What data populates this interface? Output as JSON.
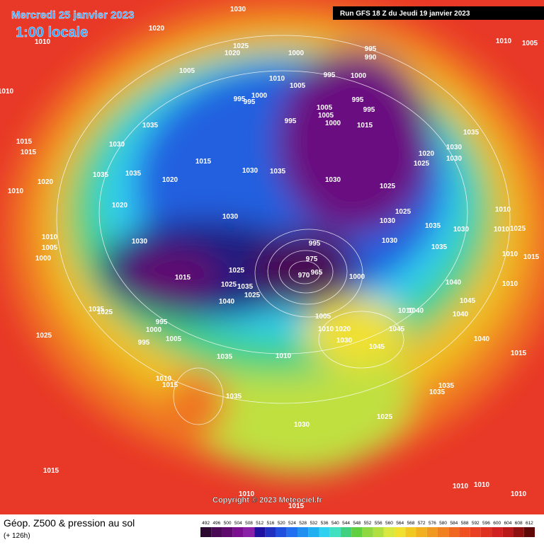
{
  "header": {
    "title": "Mercredi 25 janvier 2023",
    "time": "1:00 locale",
    "run": "Run GFS 18 Z du Jeudi 19 janvier 2023"
  },
  "copyright": "Copyright © 2023 Meteociel.fr",
  "footer": {
    "title": "Géop. Z500 & pression au sol",
    "lead": "(+ 126h)"
  },
  "pressure_labels": [
    "1030",
    "1020",
    "1010",
    "1025",
    "1020",
    "995",
    "990",
    "1000",
    "1005",
    "1010",
    "1005",
    "995",
    "1000",
    "1000",
    "995",
    "995",
    "995",
    "995",
    "1005",
    "1005",
    "1000",
    "995",
    "1015",
    "1035",
    "1035",
    "1030",
    "1015",
    "1015",
    "1015",
    "1030",
    "1035",
    "1020",
    "1025",
    "1030",
    "1030",
    "1035",
    "1035",
    "1020",
    "1020",
    "1010",
    "1030",
    "1025",
    "1020",
    "1030",
    "1025",
    "1030",
    "1010",
    "1035",
    "1030",
    "1010",
    "1025",
    "1010",
    "1005",
    "1000",
    "1030",
    "1030",
    "1035",
    "1015",
    "1010",
    "995",
    "975",
    "970",
    "965",
    "1025",
    "1015",
    "1000",
    "1010",
    "1040",
    "1025",
    "1035",
    "1025",
    "1040",
    "1035",
    "1025",
    "1010",
    "1040",
    "1045",
    "1040",
    "1005",
    "995",
    "1000",
    "1010",
    "1020",
    "1045",
    "1030",
    "1025",
    "995",
    "1005",
    "1045",
    "1040",
    "1035",
    "1010",
    "1015",
    "1010",
    "1015",
    "1035",
    "1035",
    "1035",
    "1030",
    "1025",
    "1015",
    "1010",
    "1010",
    "1010",
    "1010",
    "1015",
    "1010",
    "1005",
    "1010"
  ],
  "scale": {
    "labels": [
      "492",
      "496",
      "500",
      "504",
      "508",
      "512",
      "516",
      "520",
      "524",
      "528",
      "532",
      "536",
      "540",
      "544",
      "548",
      "552",
      "556",
      "560",
      "564",
      "568",
      "572",
      "576",
      "580",
      "584",
      "588",
      "592",
      "596",
      "600",
      "604",
      "608",
      "612"
    ],
    "colors": [
      "#2a0830",
      "#4a0a55",
      "#600a70",
      "#7a1090",
      "#8a20a8",
      "#2010a0",
      "#2030c0",
      "#2050e0",
      "#2070f0",
      "#2090f0",
      "#20b0f0",
      "#30d0f0",
      "#40e0c0",
      "#40d080",
      "#60d040",
      "#90d840",
      "#b0e040",
      "#d8e840",
      "#f0e030",
      "#f0c820",
      "#f0b020",
      "#f09820",
      "#f08020",
      "#f06820",
      "#f05020",
      "#e84020",
      "#e03020",
      "#d02020",
      "#b81818",
      "#901010",
      "#600808"
    ]
  }
}
